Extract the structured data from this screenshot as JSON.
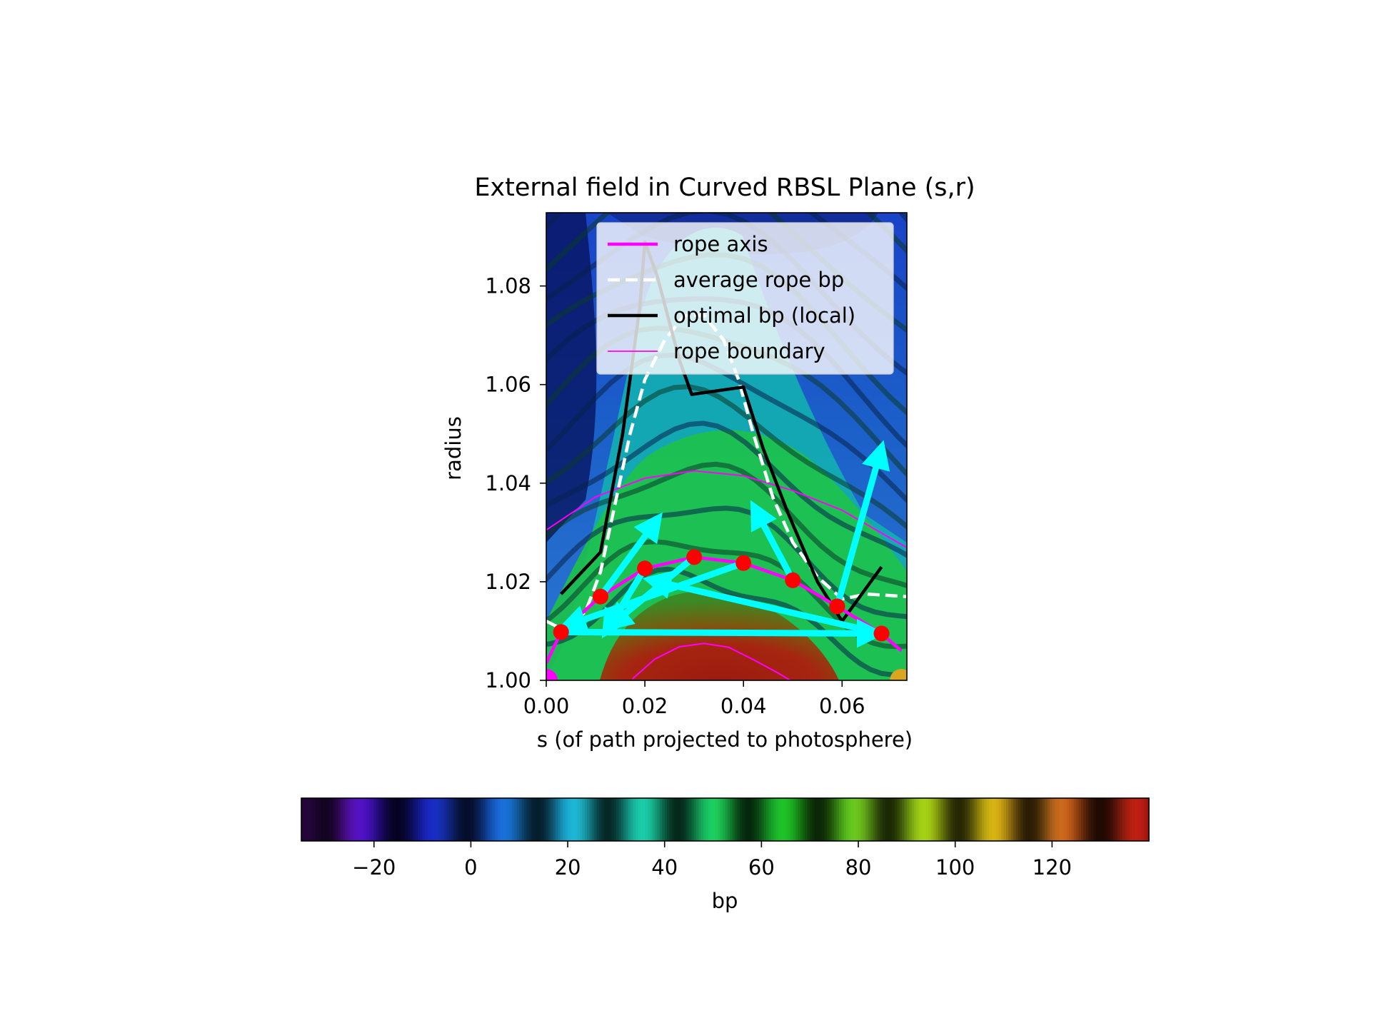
{
  "chart_data": {
    "type": "heatmap",
    "title": "External field in Curved RBSL Plane (s,r)",
    "xlabel": "s (of path projected to photosphere)",
    "ylabel": "radius",
    "xlim": [
      0.0,
      0.073
    ],
    "ylim": [
      1.0,
      1.095
    ],
    "x_ticks": [
      "0.00",
      "0.02",
      "0.04",
      "0.06"
    ],
    "x_tick_values": [
      0.0,
      0.02,
      0.04,
      0.06
    ],
    "y_ticks": [
      "1.00",
      "1.02",
      "1.04",
      "1.06",
      "1.08"
    ],
    "y_tick_values": [
      1.0,
      1.02,
      1.04,
      1.06,
      1.08
    ],
    "legend_position": "upper right",
    "series": [
      {
        "name": "rope axis",
        "color": "#ff00ff",
        "style": "solid-thick",
        "x": [
          0.0,
          0.003,
          0.011,
          0.02,
          0.03,
          0.04,
          0.05,
          0.059,
          0.068,
          0.072
        ],
        "y": [
          1.0035,
          1.0098,
          1.017,
          1.0227,
          1.025,
          1.0238,
          1.0203,
          1.015,
          1.0095,
          1.006
        ]
      },
      {
        "name": "average rope bp",
        "color": "#ffffff",
        "style": "dashed",
        "x": [
          0.0,
          0.004,
          0.008,
          0.011,
          0.014,
          0.017,
          0.02,
          0.024,
          0.028,
          0.032,
          0.036,
          0.039,
          0.042,
          0.046,
          0.05,
          0.055,
          0.06,
          0.065,
          0.073
        ],
        "y": [
          1.012,
          1.01,
          1.014,
          1.022,
          1.036,
          1.05,
          1.061,
          1.069,
          1.074,
          1.074,
          1.069,
          1.061,
          1.05,
          1.037,
          1.028,
          1.021,
          1.0165,
          1.0175,
          1.017
        ]
      },
      {
        "name": "optimal bp (local)",
        "color": "#000000",
        "style": "solid",
        "x": [
          0.003,
          0.011,
          0.0155,
          0.019,
          0.02,
          0.0225,
          0.027,
          0.0295,
          0.04,
          0.044,
          0.049,
          0.055,
          0.06,
          0.068
        ],
        "y": [
          1.0175,
          1.026,
          1.05,
          1.076,
          1.089,
          1.082,
          1.065,
          1.058,
          1.0595,
          1.047,
          1.034,
          1.02,
          1.012,
          1.023
        ]
      },
      {
        "name": "rope boundary",
        "color": "#ff00ff",
        "style": "thin",
        "upper": {
          "x": [
            0.0,
            0.01,
            0.02,
            0.03,
            0.04,
            0.05,
            0.06,
            0.073
          ],
          "y": [
            1.0305,
            1.0372,
            1.041,
            1.0425,
            1.0415,
            1.0385,
            1.0345,
            1.027
          ]
        },
        "lower": {
          "x": [
            0.0175,
            0.022,
            0.027,
            0.032,
            0.037,
            0.042,
            0.047,
            0.0495
          ],
          "y": [
            1.0003,
            1.0043,
            1.0068,
            1.0075,
            1.0067,
            1.0042,
            1.0015,
            1.0
          ]
        }
      }
    ],
    "points": {
      "color": "#ff0000",
      "x": [
        0.003,
        0.011,
        0.02,
        0.03,
        0.04,
        0.05,
        0.059,
        0.068
      ],
      "y": [
        1.0098,
        1.017,
        1.0227,
        1.025,
        1.0238,
        1.0203,
        1.015,
        1.0095
      ]
    },
    "arrows": {
      "color": "#00ffff",
      "items": [
        {
          "x0": 0.003,
          "y0": 1.0098,
          "x1": 0.0665,
          "y1": 1.0095
        },
        {
          "x0": 0.011,
          "y0": 1.017,
          "x1": 0.0222,
          "y1": 1.0322
        },
        {
          "x0": 0.02,
          "y0": 1.0227,
          "x1": 0.0125,
          "y1": 1.0105
        },
        {
          "x0": 0.03,
          "y0": 1.025,
          "x1": 0.0135,
          "y1": 1.0115
        },
        {
          "x0": 0.04,
          "y0": 1.0238,
          "x1": 0.0045,
          "y1": 1.0112
        },
        {
          "x0": 0.05,
          "y0": 1.0203,
          "x1": 0.0425,
          "y1": 1.0345
        },
        {
          "x0": 0.059,
          "y0": 1.015,
          "x1": 0.0678,
          "y1": 1.0465
        },
        {
          "x0": 0.068,
          "y0": 1.0095,
          "x1": 0.0218,
          "y1": 1.0202
        }
      ]
    },
    "endpoints": [
      {
        "x": 0.0,
        "y": 1.0,
        "color": "#ff00ff"
      },
      {
        "x": 0.072,
        "y": 1.0,
        "color": "#daa520"
      }
    ],
    "colorbar": {
      "label": "bp",
      "range": [
        -35,
        140
      ],
      "ticks": [
        "−20",
        "0",
        "20",
        "40",
        "60",
        "80",
        "100",
        "120"
      ],
      "tick_values": [
        -20,
        0,
        20,
        40,
        60,
        80,
        100,
        120
      ],
      "colormap": "banded spectral (purple-blue-cyan-green-yellow-orange-red)"
    }
  }
}
